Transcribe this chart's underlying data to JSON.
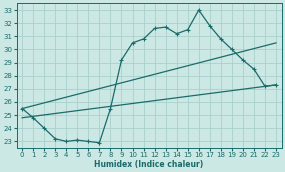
{
  "xlabel": "Humidex (Indice chaleur)",
  "bg_color": "#cce8e4",
  "grid_color": "#aacfcc",
  "line_color": "#1a6b6b",
  "xlim": [
    -0.5,
    23.5
  ],
  "ylim": [
    22.5,
    33.5
  ],
  "yticks": [
    23,
    24,
    25,
    26,
    27,
    28,
    29,
    30,
    31,
    32,
    33
  ],
  "xticks": [
    0,
    1,
    2,
    3,
    4,
    5,
    6,
    7,
    8,
    9,
    10,
    11,
    12,
    13,
    14,
    15,
    16,
    17,
    18,
    19,
    20,
    21,
    22,
    23
  ],
  "series1_x": [
    0,
    1,
    2,
    3,
    4,
    5,
    6,
    7,
    8,
    9,
    10,
    11,
    12,
    13,
    14,
    15,
    16,
    17,
    18,
    19,
    20,
    21,
    22,
    23
  ],
  "series1_y": [
    25.5,
    24.8,
    24.0,
    23.2,
    23.0,
    23.1,
    23.0,
    22.9,
    25.5,
    29.2,
    30.5,
    30.8,
    31.6,
    31.7,
    31.2,
    31.5,
    33.0,
    31.8,
    30.8,
    30.0,
    29.2,
    28.5,
    27.2,
    27.3
  ],
  "series2_x": [
    0,
    23
  ],
  "series2_y": [
    24.8,
    27.3
  ],
  "series3_x": [
    0,
    23
  ],
  "series3_y": [
    25.5,
    30.5
  ],
  "markersize": 2.5,
  "linewidth": 0.9,
  "xlabel_fontsize": 5.5,
  "tick_fontsize": 5.0
}
